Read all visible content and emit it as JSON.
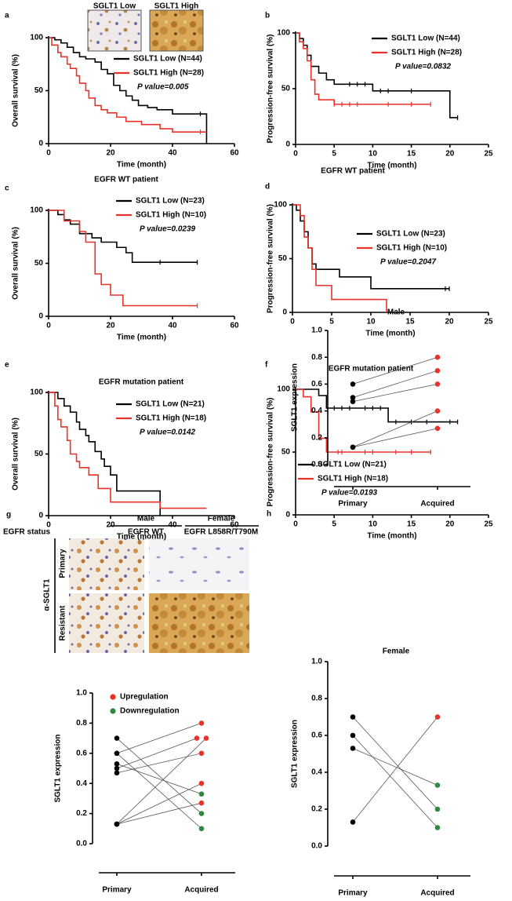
{
  "chart_data": [
    {
      "type": "km",
      "panel_label": "a",
      "x_label": "Time (month)",
      "y_label": "Overall survival (%)",
      "inset_labels": [
        "SGLT1 Low",
        "SGLT1 High"
      ],
      "xlim": [
        0,
        60
      ],
      "xticks": [
        0,
        20,
        40,
        60
      ],
      "ylim": [
        0,
        100
      ],
      "yticks": [
        0,
        50,
        100
      ],
      "annotation": "P value=0.005",
      "annotation_color": "#e8322a",
      "series": [
        {
          "name": "SGLT1 Low (N=44)",
          "color": "#000000",
          "x": [
            0,
            2,
            4,
            6,
            8,
            10,
            12,
            15,
            17,
            19,
            21,
            23,
            25,
            27,
            29,
            32,
            35,
            40,
            51
          ],
          "values": [
            100,
            98,
            95,
            91,
            86,
            82,
            80,
            77,
            70,
            66,
            55,
            50,
            45,
            41,
            36,
            34,
            32,
            28,
            0
          ],
          "censored": [
            49
          ]
        },
        {
          "name": "SGLT1 High (N=28)",
          "color": "#e8322a",
          "x": [
            0,
            1,
            3,
            4,
            6,
            7,
            9,
            10,
            12,
            13,
            15,
            17,
            19,
            22,
            25,
            30,
            36,
            40,
            51
          ],
          "values": [
            100,
            93,
            86,
            82,
            75,
            71,
            64,
            57,
            50,
            43,
            36,
            32,
            29,
            25,
            21,
            18,
            14,
            11,
            11
          ],
          "censored": [
            49
          ]
        }
      ]
    },
    {
      "type": "km",
      "panel_label": "b",
      "x_label": "Time (month)",
      "y_label": "Progression-free survival (%)",
      "xlim": [
        0,
        25
      ],
      "xticks": [
        0,
        5,
        10,
        15,
        20,
        25
      ],
      "ylim": [
        0,
        100
      ],
      "yticks": [
        0,
        50,
        100
      ],
      "annotation": "P value=0.0832",
      "annotation_color": "#000000",
      "series": [
        {
          "name": "SGLT1 Low (N=44)",
          "color": "#000000",
          "x": [
            0,
            0.5,
            1,
            1.5,
            2,
            3,
            4,
            5,
            10,
            20,
            21
          ],
          "values": [
            100,
            95,
            89,
            80,
            70,
            64,
            58,
            54,
            48,
            24,
            24
          ],
          "censored": [
            7,
            8,
            9,
            11,
            12,
            15,
            21
          ]
        },
        {
          "name": "SGLT1 High (N=28)",
          "color": "#e8322a",
          "x": [
            0,
            0.5,
            1,
            1.5,
            2,
            2.5,
            3,
            5,
            17.5
          ],
          "values": [
            100,
            92,
            86,
            75,
            58,
            45,
            40,
            36,
            36
          ],
          "censored": [
            5,
            6,
            7,
            8,
            12,
            15,
            17.5
          ]
        }
      ]
    },
    {
      "type": "km",
      "panel_label": "c",
      "title": "EGFR WT patient",
      "x_label": "Time (month)",
      "y_label": "Overall survival (%)",
      "xlim": [
        0,
        60
      ],
      "xticks": [
        0,
        20,
        40,
        60
      ],
      "ylim": [
        0,
        100
      ],
      "yticks": [
        0,
        50,
        100
      ],
      "annotation": "P value=0.0239",
      "annotation_color": "#e8322a",
      "series": [
        {
          "name": "SGLT1 Low (N=23)",
          "color": "#000000",
          "x": [
            0,
            3,
            5,
            7,
            10,
            14,
            17,
            22,
            25,
            27,
            48
          ],
          "values": [
            100,
            96,
            91,
            87,
            78,
            74,
            70,
            65,
            60,
            51,
            51
          ],
          "censored": [
            36,
            48
          ]
        },
        {
          "name": "SGLT1 High (N=10)",
          "color": "#e8322a",
          "x": [
            0,
            5,
            10,
            12,
            15,
            17,
            20,
            24,
            48
          ],
          "values": [
            100,
            90,
            80,
            70,
            40,
            30,
            20,
            10,
            10
          ],
          "censored": [
            48
          ]
        }
      ]
    },
    {
      "type": "km",
      "panel_label": "d",
      "title": "EGFR WT patient",
      "x_label": "Time (month)",
      "y_label": "Progression-free survival (%)",
      "xlim": [
        0,
        25
      ],
      "xticks": [
        0,
        5,
        10,
        15,
        20,
        25
      ],
      "ylim": [
        0,
        100
      ],
      "yticks": [
        0,
        50,
        100
      ],
      "annotation": "P value=0.2047",
      "annotation_color": "#000000",
      "series": [
        {
          "name": "SGLT1 Low (N=23)",
          "color": "#000000",
          "x": [
            0,
            0.5,
            1,
            1.5,
            2,
            2.5,
            3,
            6,
            10,
            20
          ],
          "values": [
            100,
            95,
            85,
            75,
            60,
            45,
            40,
            33,
            22,
            22
          ],
          "censored": [
            19.5,
            20
          ]
        },
        {
          "name": "SGLT1 High (N=10)",
          "color": "#e8322a",
          "x": [
            0,
            1,
            1.5,
            2,
            2.5,
            3,
            5,
            12
          ],
          "values": [
            100,
            90,
            70,
            60,
            40,
            25,
            12,
            0
          ],
          "censored": []
        }
      ]
    },
    {
      "type": "km",
      "panel_label": "e",
      "title": "EGFR mutation patient",
      "x_label": "Time (month)",
      "y_label": "Overall survival (%)",
      "xlim": [
        0,
        60
      ],
      "xticks": [
        0,
        20,
        40,
        60
      ],
      "ylim": [
        0,
        100
      ],
      "yticks": [
        0,
        50,
        100
      ],
      "annotation": "P value=0.0142",
      "annotation_color": "#e8322a",
      "series": [
        {
          "name": "SGLT1 Low (N=21)",
          "color": "#000000",
          "x": [
            0,
            3,
            5,
            7,
            9,
            10,
            12,
            13,
            15,
            17,
            18,
            20,
            22,
            36
          ],
          "values": [
            100,
            95,
            89,
            84,
            76,
            70,
            65,
            60,
            52,
            46,
            40,
            33,
            20,
            0
          ],
          "censored": []
        },
        {
          "name": "SGLT1 High (N=18)",
          "color": "#e8322a",
          "x": [
            0,
            2,
            3,
            4,
            6,
            7,
            9,
            10,
            13,
            16,
            20,
            36,
            51
          ],
          "values": [
            100,
            89,
            78,
            72,
            61,
            50,
            44,
            39,
            33,
            22,
            11,
            6,
            6
          ],
          "censored": []
        }
      ]
    },
    {
      "type": "km",
      "panel_label": "f",
      "title": "EGFR mutation patient",
      "x_label": "Time (month)",
      "y_label": "Progression-free survival (%)",
      "xlim": [
        0,
        25
      ],
      "xticks": [
        0,
        5,
        10,
        15,
        20,
        25
      ],
      "ylim": [
        0,
        100
      ],
      "yticks": [
        0,
        50,
        100
      ],
      "annotation": "P value=0.0193",
      "annotation_color": "#e8322a",
      "series": [
        {
          "name": "SGLT1 Low (N=21)",
          "color": "#000000",
          "x": [
            0,
            3,
            4,
            12,
            21
          ],
          "values": [
            100,
            95,
            85,
            74,
            74
          ],
          "censored": [
            5,
            6,
            7,
            9,
            10,
            11,
            13,
            15,
            17,
            20,
            21
          ]
        },
        {
          "name": "SGLT1 High (N=18)",
          "color": "#e8322a",
          "x": [
            0,
            1,
            2,
            3,
            4,
            17.5
          ],
          "values": [
            100,
            94,
            82,
            61,
            50,
            50
          ],
          "censored": [
            5.5,
            6,
            9,
            10,
            13,
            15,
            17.5
          ]
        }
      ]
    },
    {
      "type": "paired",
      "y_label": "SGLT1 expression",
      "categories": [
        "Primary",
        "Acquired"
      ],
      "ylim": [
        0,
        1
      ],
      "yticks": [
        {
          "value": 0,
          "label": "0.0"
        },
        0.2,
        0.4,
        0.6,
        0.8,
        {
          "value": 1,
          "label": "1.0"
        }
      ],
      "legend": [
        {
          "label": "Upregulation",
          "color": "#e8322a"
        },
        {
          "label": "Downregulation",
          "color": "#2e8b3e"
        }
      ],
      "series": [
        {
          "values": [
            0.6,
            0.8
          ],
          "colors": [
            "#000000",
            "#e8322a"
          ]
        },
        {
          "values": [
            0.5,
            0.7
          ],
          "colors": [
            "#000000",
            "#e8322a"
          ]
        },
        {
          "values": [
            0.47,
            0.6
          ],
          "colors": [
            "#000000",
            "#e8322a"
          ]
        },
        {
          "values": [
            0.13,
            0.4
          ],
          "colors": [
            "#000000",
            "#e8322a"
          ]
        },
        {
          "values": [
            0.13,
            0.27
          ],
          "colors": [
            "#000000",
            "#e8322a"
          ]
        },
        {
          "values": [
            0.7,
            0.2
          ],
          "colors": [
            "#000000",
            "#2e8b3e"
          ]
        },
        {
          "values": [
            0.6,
            0.1
          ],
          "colors": [
            "#000000",
            "#2e8b3e"
          ]
        },
        {
          "values": [
            0.53,
            0.33
          ],
          "colors": [
            "#000000",
            "#2e8b3e"
          ]
        },
        {
          "values": [
            0.13,
            0.7
          ],
          "colors": [
            "#000000",
            "#e8322a"
          ]
        }
      ]
    },
    {
      "type": "paired",
      "panel_label": "h",
      "title": "Male",
      "y_label": "SGLT1 expression",
      "categories": [
        "Primary",
        "Acquired"
      ],
      "ylim": [
        0,
        1
      ],
      "yticks": [
        {
          "value": 0,
          "label": "0.0"
        },
        0.2,
        0.4,
        0.6,
        0.8,
        {
          "value": 1,
          "label": "1.0"
        }
      ],
      "series": [
        {
          "values": [
            0.6,
            0.8
          ],
          "colors": [
            "#000000",
            "#e8322a"
          ]
        },
        {
          "values": [
            0.5,
            0.7
          ],
          "colors": [
            "#000000",
            "#e8322a"
          ]
        },
        {
          "values": [
            0.47,
            0.6
          ],
          "colors": [
            "#000000",
            "#e8322a"
          ]
        },
        {
          "values": [
            0.13,
            0.4
          ],
          "colors": [
            "#000000",
            "#e8322a"
          ]
        },
        {
          "values": [
            0.13,
            0.27
          ],
          "colors": [
            "#000000",
            "#e8322a"
          ]
        }
      ]
    },
    {
      "type": "paired",
      "title": "Female",
      "y_label": "SGLT1 expression",
      "categories": [
        "Primary",
        "Acquired"
      ],
      "ylim": [
        0,
        1
      ],
      "yticks": [
        {
          "value": 0,
          "label": "0.0"
        },
        0.2,
        0.4,
        0.6,
        0.8,
        {
          "value": 1,
          "label": "1.0"
        }
      ],
      "series": [
        {
          "values": [
            0.7,
            0.2
          ],
          "colors": [
            "#000000",
            "#2e8b3e"
          ]
        },
        {
          "values": [
            0.6,
            0.1
          ],
          "colors": [
            "#000000",
            "#2e8b3e"
          ]
        },
        {
          "values": [
            0.53,
            0.33
          ],
          "colors": [
            "#000000",
            "#2e8b3e"
          ]
        },
        {
          "values": [
            0.13,
            0.7
          ],
          "colors": [
            "#000000",
            "#e8322a"
          ]
        }
      ]
    }
  ],
  "ihc": {
    "panel_label": "g",
    "columns": [
      "Male",
      "Female"
    ],
    "status_label": "EGFR status",
    "statuses": [
      "EGFR WT",
      "EGFR L858R/T790M"
    ],
    "stain": "α-SGLT1",
    "rows": [
      "Primary",
      "Resistant"
    ]
  }
}
